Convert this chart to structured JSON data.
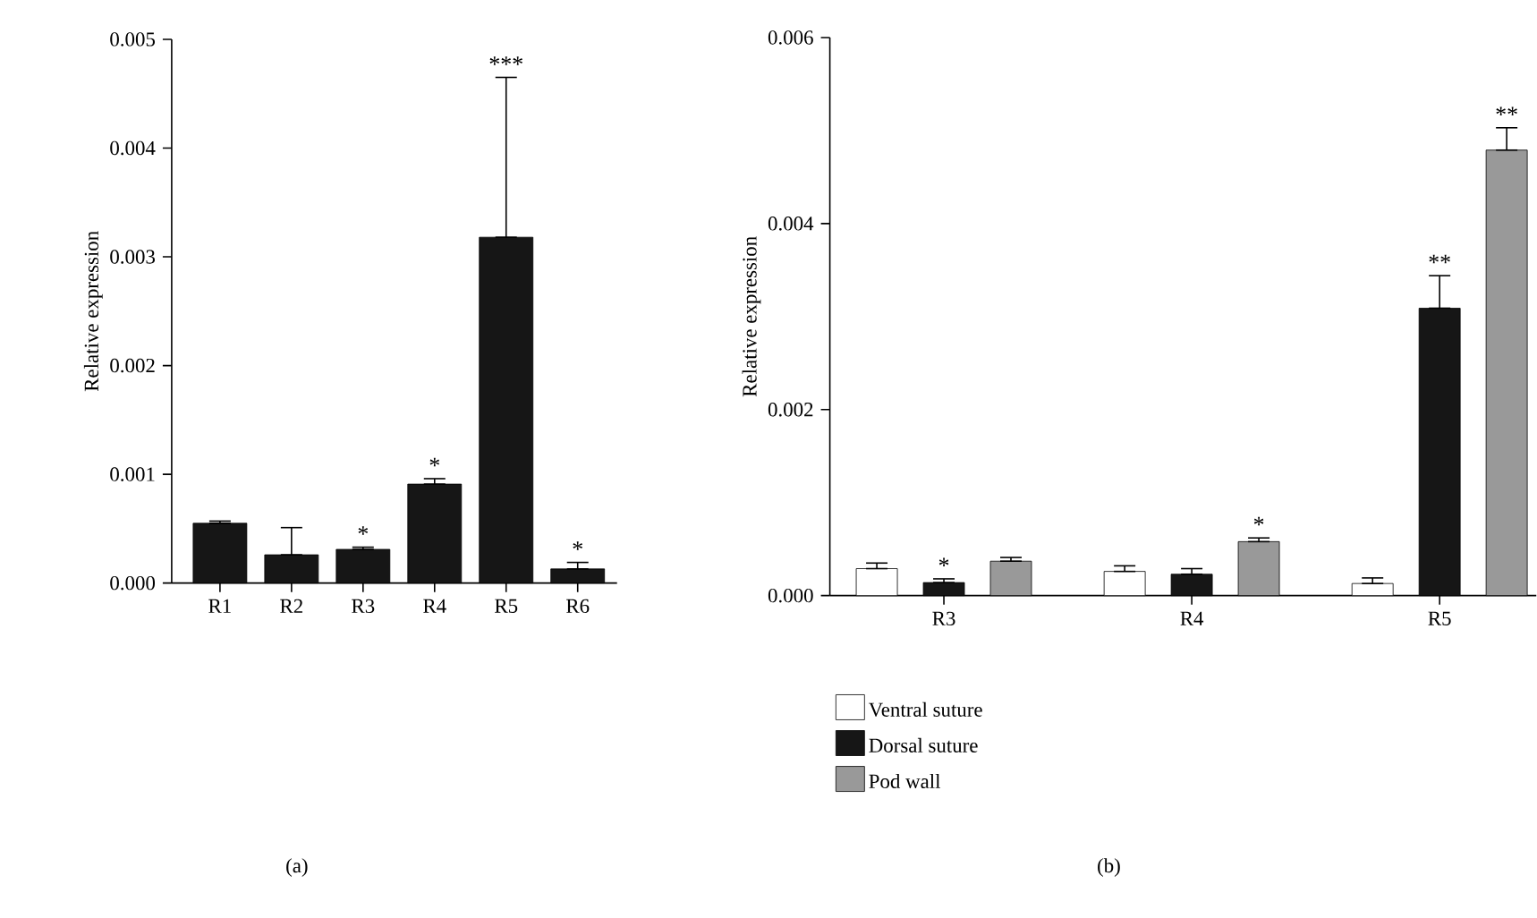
{
  "chart_data": [
    {
      "type": "bar",
      "ylabel": "Relative expression",
      "categories": [
        "R1",
        "R2",
        "R3",
        "R4",
        "R5",
        "R6"
      ],
      "values": [
        0.00055,
        0.00026,
        0.00031,
        0.00091,
        0.00318,
        0.00013
      ],
      "errors": [
        [
          0.00055,
          0.00057
        ],
        [
          0.00026,
          0.00051
        ],
        [
          0.00031,
          0.00033
        ],
        [
          0.00091,
          0.00096
        ],
        [
          0.00318,
          0.00465
        ],
        [
          0.00013,
          0.00019
        ]
      ],
      "color": "#161616",
      "ylim": [
        0,
        0.005
      ],
      "yticks": [
        {
          "value": 0,
          "label": "0.000"
        },
        {
          "value": 0.001,
          "label": "0.001"
        },
        {
          "value": 0.002,
          "label": "0.002"
        },
        {
          "value": 0.003,
          "label": "0.003"
        },
        {
          "value": 0.004,
          "label": "0.004"
        },
        {
          "value": 0.005,
          "label": "0.005"
        }
      ],
      "annotations": [
        {
          "text": "*",
          "x": "R3",
          "y": 0.00033
        },
        {
          "text": "*",
          "x": "R4",
          "y": 0.00096
        },
        {
          "text": "***",
          "x": "R5",
          "y": 0.00465
        },
        {
          "text": "*",
          "x": "R6",
          "y": 0.00019
        },
        "(a)"
      ]
    },
    {
      "type": "bar",
      "ylabel": "Relative expression",
      "categories": [
        "R3",
        "R4",
        "R5"
      ],
      "series": [
        {
          "name": "Ventral suture",
          "color": "#ffffff",
          "values": [
            0.00029,
            0.00026,
            0.00013
          ],
          "errors": [
            [
              0.00029,
              0.00035
            ],
            [
              0.00026,
              0.00032
            ],
            [
              0.00013,
              0.00019
            ]
          ]
        },
        {
          "name": "Dorsal suture",
          "color": "#161616",
          "values": [
            0.00014,
            0.00023,
            0.00309
          ],
          "errors": [
            [
              0.00014,
              0.00018
            ],
            [
              0.00023,
              0.00029
            ],
            [
              0.00309,
              0.00344
            ]
          ]
        },
        {
          "name": "Pod wall",
          "color": "#999999",
          "values": [
            0.00037,
            0.00058,
            0.00479
          ],
          "errors": [
            [
              0.00037,
              0.00041
            ],
            [
              0.00058,
              0.00062
            ],
            [
              0.00479,
              0.00503
            ]
          ]
        }
      ],
      "ylim": [
        0,
        0.006
      ],
      "yticks": [
        {
          "value": 0,
          "label": "0.000"
        },
        {
          "value": 0.002,
          "label": "0.002"
        },
        {
          "value": 0.004,
          "label": "0.004"
        },
        {
          "value": 0.006,
          "label": "0.006"
        }
      ],
      "legend": "bottom",
      "annotations": [
        {
          "text": "*",
          "x": "R3",
          "y": 0.00018
        },
        "*",
        {
          "text": "**",
          "x": "R5",
          "y": 0.00344
        },
        "**",
        "(b)"
      ]
    }
  ]
}
